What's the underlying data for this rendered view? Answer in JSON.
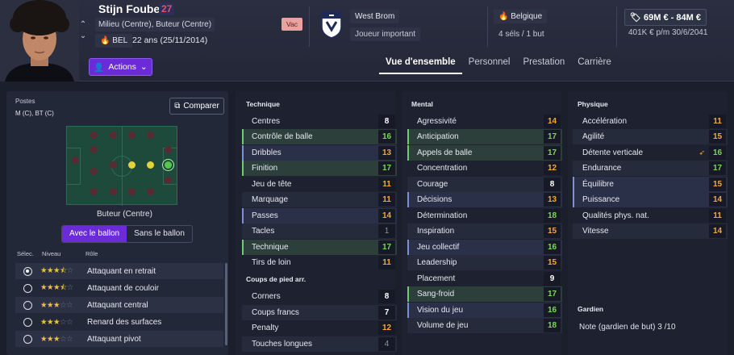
{
  "player": {
    "name": "Stijn Foubert",
    "number": "27",
    "positions": "Milieu (Centre), Buteur (Centre)",
    "nationality": "BEL",
    "age": "22 ans (25/11/2014)",
    "status": "Vac"
  },
  "actions_label": "Actions",
  "club": {
    "name": "West Brom",
    "role": "Joueur important",
    "badge_text": "ALBION"
  },
  "country": {
    "name": "Belgique",
    "caps": "4 séls / 1 but"
  },
  "contract": {
    "value": "69M € - 84M €",
    "wage": "401K € p/m",
    "expiry": "30/6/2041"
  },
  "tabs": [
    {
      "label": "Vue d'ensemble",
      "active": true
    },
    {
      "label": "Personnel"
    },
    {
      "label": "Prestation"
    },
    {
      "label": "Carrière"
    }
  ],
  "positions_panel": {
    "title": "Postes",
    "value": "M (C), BT (C)",
    "compare_label": "Comparer",
    "selected_position": "Buteur (Centre)",
    "toggle": {
      "with_ball": "Avec le ballon",
      "without_ball": "Sans le ballon"
    },
    "role_headers": {
      "select": "Sélec.",
      "level": "Niveau",
      "role": "Rôle"
    },
    "roles": [
      {
        "name": "Attaquant en retrait",
        "stars": 3.5,
        "selected": true
      },
      {
        "name": "Attaquant de couloir",
        "stars": 3.5,
        "selected": false
      },
      {
        "name": "Attaquant central",
        "stars": 3,
        "selected": false
      },
      {
        "name": "Renard des surfaces",
        "stars": 3,
        "selected": false
      },
      {
        "name": "Attaquant pivot",
        "stars": 3,
        "selected": false
      }
    ]
  },
  "technique": {
    "title": "Technique",
    "attrs": [
      {
        "name": "Centres",
        "value": "8"
      },
      {
        "name": "Contrôle de balle",
        "value": "16"
      },
      {
        "name": "Dribbles",
        "value": "13"
      },
      {
        "name": "Finition",
        "value": "17"
      },
      {
        "name": "Jeu de tête",
        "value": "11"
      },
      {
        "name": "Marquage",
        "value": "11"
      },
      {
        "name": "Passes",
        "value": "14"
      },
      {
        "name": "Tacles",
        "value": "1"
      },
      {
        "name": "Technique",
        "value": "17"
      },
      {
        "name": "Tirs de loin",
        "value": "11"
      }
    ]
  },
  "set_pieces": {
    "title": "Coups de pied arr.",
    "attrs": [
      {
        "name": "Corners",
        "value": "8"
      },
      {
        "name": "Coups francs",
        "value": "7"
      },
      {
        "name": "Penalty",
        "value": "12"
      },
      {
        "name": "Touches longues",
        "value": "4"
      }
    ]
  },
  "mental": {
    "title": "Mental",
    "attrs": [
      {
        "name": "Agressivité",
        "value": "14"
      },
      {
        "name": "Anticipation",
        "value": "17"
      },
      {
        "name": "Appels de balle",
        "value": "17"
      },
      {
        "name": "Concentration",
        "value": "12"
      },
      {
        "name": "Courage",
        "value": "8"
      },
      {
        "name": "Décisions",
        "value": "13"
      },
      {
        "name": "Détermination",
        "value": "18"
      },
      {
        "name": "Inspiration",
        "value": "15"
      },
      {
        "name": "Jeu collectif",
        "value": "16"
      },
      {
        "name": "Leadership",
        "value": "15"
      },
      {
        "name": "Placement",
        "value": "9"
      },
      {
        "name": "Sang-froid",
        "value": "17"
      },
      {
        "name": "Vision du jeu",
        "value": "16"
      },
      {
        "name": "Volume de jeu",
        "value": "18"
      }
    ]
  },
  "physique": {
    "title": "Physique",
    "attrs": [
      {
        "name": "Accélération",
        "value": "11"
      },
      {
        "name": "Agilité",
        "value": "15"
      },
      {
        "name": "Détente verticale",
        "value": "16"
      },
      {
        "name": "Endurance",
        "value": "17"
      },
      {
        "name": "Équilibre",
        "value": "15"
      },
      {
        "name": "Puissance",
        "value": "14"
      },
      {
        "name": "Qualités phys. nat.",
        "value": "11"
      },
      {
        "name": "Vitesse",
        "value": "14"
      }
    ]
  },
  "goalkeeper": {
    "title": "Gardien",
    "note": "Note (gardien de but)  3 /10"
  },
  "colors": {
    "accent": "#6b2bd9",
    "good": "#7bd65a",
    "average": "#f4a93a"
  }
}
